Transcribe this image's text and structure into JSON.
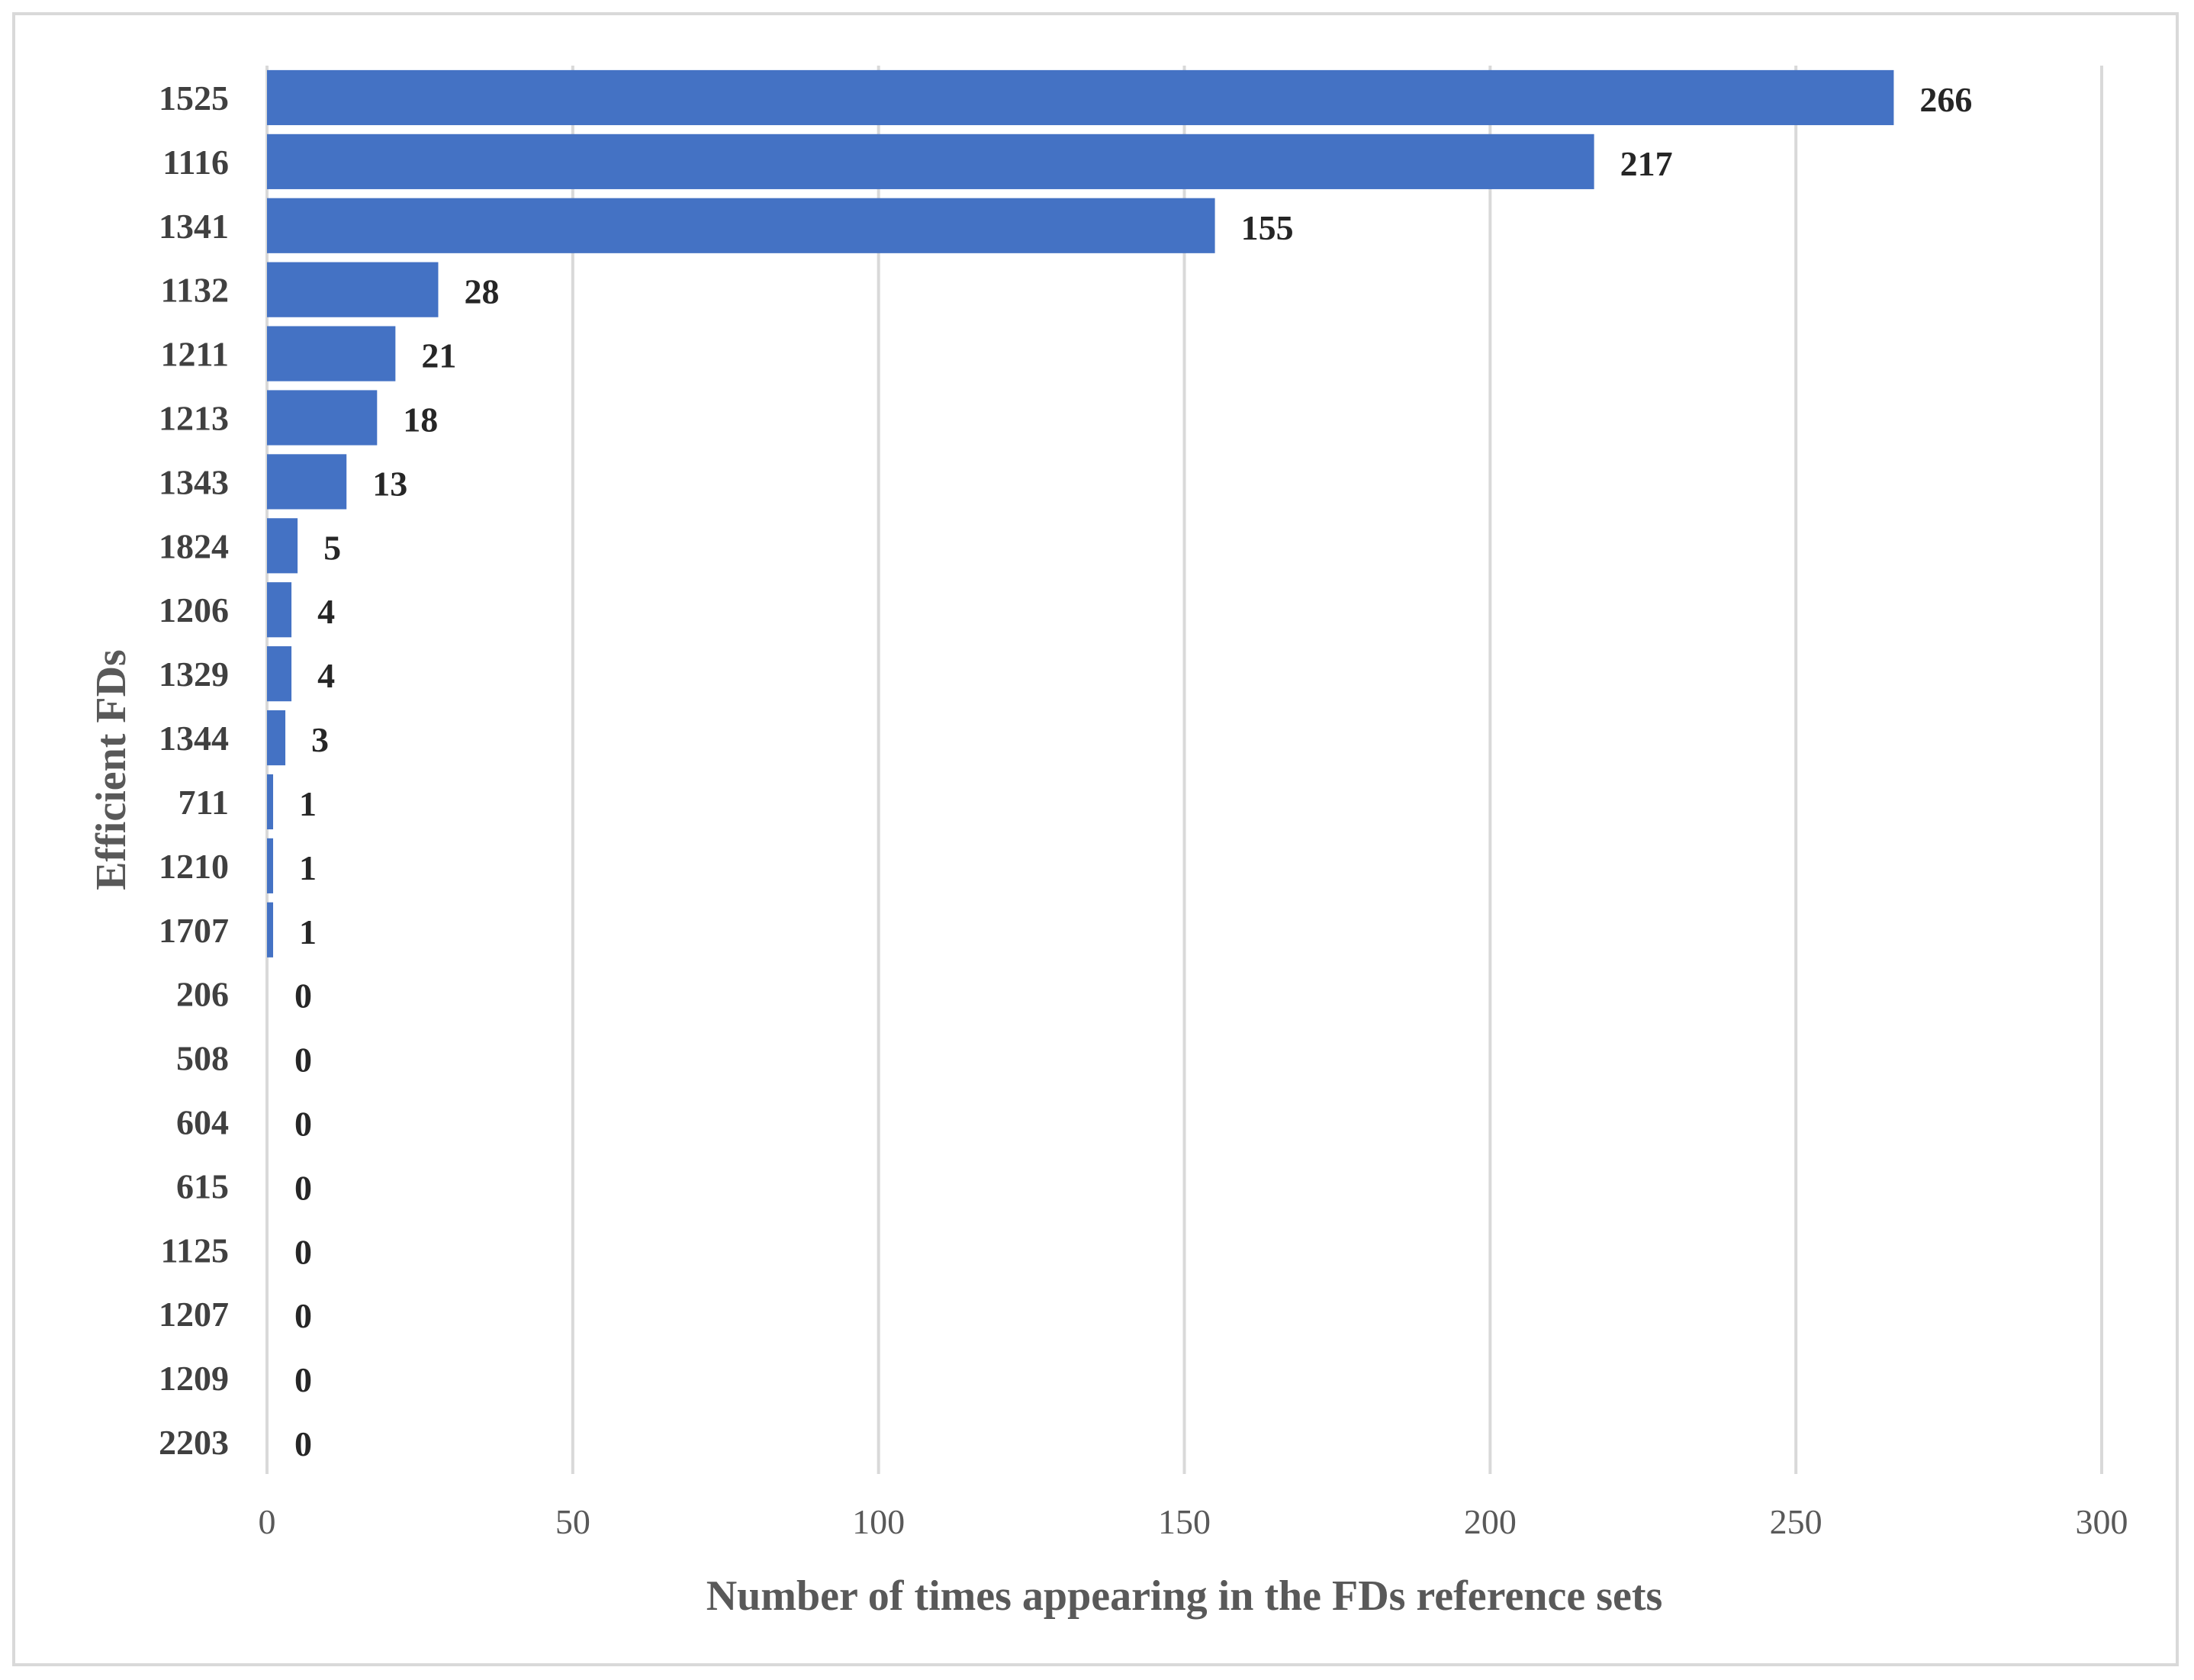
{
  "chart_data": {
    "type": "bar",
    "orientation": "horizontal",
    "xlabel": "Number of times appearing in the FDs reference sets",
    "ylabel": "Efficient FDs",
    "xlim": [
      0,
      300
    ],
    "xticks": [
      0,
      50,
      100,
      150,
      200,
      250,
      300
    ],
    "grid": true,
    "legend": "none",
    "bar_color": "#4472c4",
    "data_labels": true,
    "categories": [
      "1525",
      "1116",
      "1341",
      "1132",
      "1211",
      "1213",
      "1343",
      "1824",
      "1206",
      "1329",
      "1344",
      "711",
      "1210",
      "1707",
      "206",
      "508",
      "604",
      "615",
      "1125",
      "1207",
      "1209",
      "2203"
    ],
    "values": [
      266,
      217,
      155,
      28,
      21,
      18,
      13,
      5,
      4,
      4,
      3,
      1,
      1,
      1,
      0,
      0,
      0,
      0,
      0,
      0,
      0,
      0
    ]
  }
}
